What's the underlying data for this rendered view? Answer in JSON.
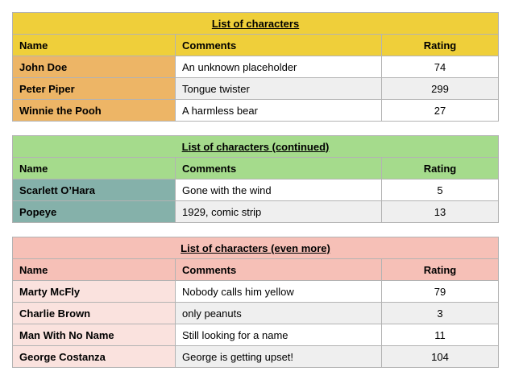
{
  "colors": {
    "row_alt_gray": "#efefef",
    "row_white": "#ffffff",
    "border": "#b3b3b3",
    "table1_header_bg": "#efcf3a",
    "table1_name_bg": "#edb566",
    "table2_header_bg": "#a5db8c",
    "table2_name_bg": "#85b1aa",
    "table3_header_bg": "#f6c0b7",
    "table3_name_bg": "#fae2de"
  },
  "tables": [
    {
      "title": "List of characters",
      "columns": {
        "name": "Name",
        "comments": "Comments",
        "rating": "Rating"
      },
      "theme": {
        "header_bg": "#efcf3a",
        "name_bg": "#edb566"
      },
      "rows": [
        {
          "name": "John Doe",
          "comments": "An unknown placeholder",
          "rating": "74"
        },
        {
          "name": "Peter Piper",
          "comments": "Tongue twister",
          "rating": "299"
        },
        {
          "name": "Winnie the Pooh",
          "comments": "A harmless bear",
          "rating": "27"
        }
      ]
    },
    {
      "title": "List of characters (continued)",
      "columns": {
        "name": "Name",
        "comments": "Comments",
        "rating": "Rating"
      },
      "theme": {
        "header_bg": "#a5db8c",
        "name_bg": "#85b1aa"
      },
      "rows": [
        {
          "name": "Scarlett O’Hara",
          "comments": "Gone with the wind",
          "rating": "5"
        },
        {
          "name": "Popeye",
          "comments": "1929, comic strip",
          "rating": "13"
        }
      ]
    },
    {
      "title": "List of characters (even more)",
      "columns": {
        "name": "Name",
        "comments": "Comments",
        "rating": "Rating"
      },
      "theme": {
        "header_bg": "#f6c0b7",
        "name_bg": "#fae2de"
      },
      "rows": [
        {
          "name": "Marty McFly",
          "comments": "Nobody calls him yellow",
          "rating": "79"
        },
        {
          "name": "Charlie Brown",
          "comments": "only peanuts",
          "rating": "3"
        },
        {
          "name": "Man With No Name",
          "comments": "Still looking for a name",
          "rating": "11"
        },
        {
          "name": "George Costanza",
          "comments": "George is getting upset!",
          "rating": "104"
        }
      ]
    }
  ]
}
